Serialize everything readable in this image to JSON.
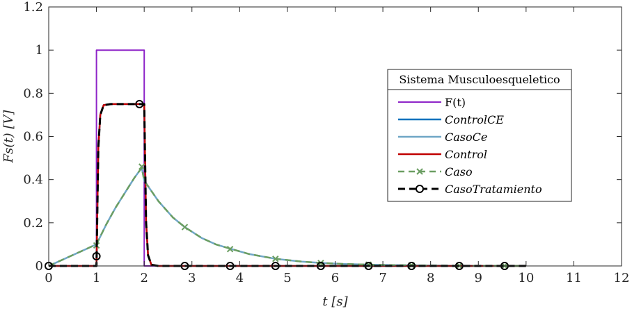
{
  "chart_data": {
    "type": "line",
    "xlabel": "t [s]",
    "ylabel": "Fs(t) [V]",
    "xlim": [
      0,
      12
    ],
    "ylim": [
      0,
      1.2
    ],
    "xticks": [
      0,
      1,
      2,
      3,
      4,
      5,
      6,
      7,
      8,
      9,
      10,
      11,
      12
    ],
    "yticks": [
      0,
      0.2,
      0.4,
      0.6,
      0.8,
      1,
      1.2
    ],
    "ytick_labels": [
      "0",
      "0.2",
      "0.4",
      "0.6",
      "0.8",
      "1",
      "1.2"
    ],
    "grid": false,
    "legend": {
      "title": "Sistema Musculoesqueletico",
      "placement": "right"
    },
    "series": [
      {
        "name": "F(t)",
        "color": "#8e24c8",
        "x": [
          0,
          1,
          1,
          2,
          2,
          10
        ],
        "y": [
          0,
          0,
          1,
          1,
          0,
          0
        ]
      },
      {
        "name": "ControlCE",
        "color": "#0072bd",
        "x": [
          0,
          1,
          1.04,
          1.08,
          1.15,
          1.3,
          2,
          2.04,
          2.08,
          2.15,
          2.3,
          10
        ],
        "y": [
          0,
          0,
          0.55,
          0.7,
          0.745,
          0.75,
          0.75,
          0.2,
          0.05,
          0.005,
          0,
          0
        ]
      },
      {
        "name": "CasoCe",
        "color": "#6fa6c6",
        "x": [
          0,
          1,
          1.2,
          1.4,
          1.6,
          1.8,
          1.95,
          2,
          2.3,
          2.6,
          2.85,
          3.2,
          3.5,
          3.8,
          4.2,
          4.75,
          5.3,
          5.7,
          6.2,
          6.7,
          7.2,
          7.6,
          8.5,
          9.5,
          10
        ],
        "y": [
          0,
          0.1,
          0.19,
          0.27,
          0.34,
          0.41,
          0.455,
          0.395,
          0.3,
          0.225,
          0.18,
          0.13,
          0.1,
          0.08,
          0.055,
          0.033,
          0.02,
          0.014,
          0.009,
          0.006,
          0.004,
          0.003,
          0.001,
          0.0005,
          0
        ]
      },
      {
        "name": "Control",
        "color": "#c00000",
        "x": [
          0,
          1,
          1.04,
          1.08,
          1.15,
          1.3,
          2,
          2.04,
          2.08,
          2.15,
          2.3,
          10
        ],
        "y": [
          0,
          0,
          0.55,
          0.7,
          0.745,
          0.75,
          0.75,
          0.2,
          0.05,
          0.005,
          0,
          0
        ]
      },
      {
        "name": "Caso",
        "color": "#6b9e62",
        "x": [
          0,
          1,
          1.2,
          1.4,
          1.6,
          1.8,
          1.95,
          2,
          2.3,
          2.6,
          2.85,
          3.2,
          3.5,
          3.8,
          4.2,
          4.75,
          5.3,
          5.7,
          6.2,
          6.7,
          7.2,
          7.6,
          8.5,
          9.5,
          10
        ],
        "y": [
          0,
          0.1,
          0.19,
          0.27,
          0.34,
          0.41,
          0.455,
          0.395,
          0.3,
          0.225,
          0.18,
          0.13,
          0.1,
          0.08,
          0.055,
          0.033,
          0.02,
          0.014,
          0.009,
          0.006,
          0.004,
          0.003,
          0.001,
          0.0005,
          0
        ],
        "markers": {
          "x": [
            1,
            1.95,
            2.85,
            3.8,
            4.75,
            5.7,
            6.7,
            7.6,
            8.6,
            9.55
          ],
          "y": [
            0.095,
            0.46,
            0.18,
            0.078,
            0.033,
            0.014,
            0.006,
            0.003,
            0.001,
            0.0005
          ]
        }
      },
      {
        "name": "CasoTratamiento",
        "color": "#000000",
        "x": [
          0,
          1,
          1.04,
          1.08,
          1.15,
          1.3,
          2,
          2.04,
          2.08,
          2.15,
          2.3,
          10
        ],
        "y": [
          0,
          0,
          0.55,
          0.7,
          0.745,
          0.75,
          0.75,
          0.2,
          0.05,
          0.005,
          0,
          0
        ],
        "markers": {
          "x": [
            0,
            1,
            1.9,
            2.85,
            3.8,
            4.75,
            5.7,
            6.7,
            7.6,
            8.6,
            9.55
          ],
          "y": [
            0,
            0.045,
            0.75,
            0,
            0,
            0,
            0,
            0,
            0,
            0,
            0
          ]
        }
      }
    ]
  }
}
